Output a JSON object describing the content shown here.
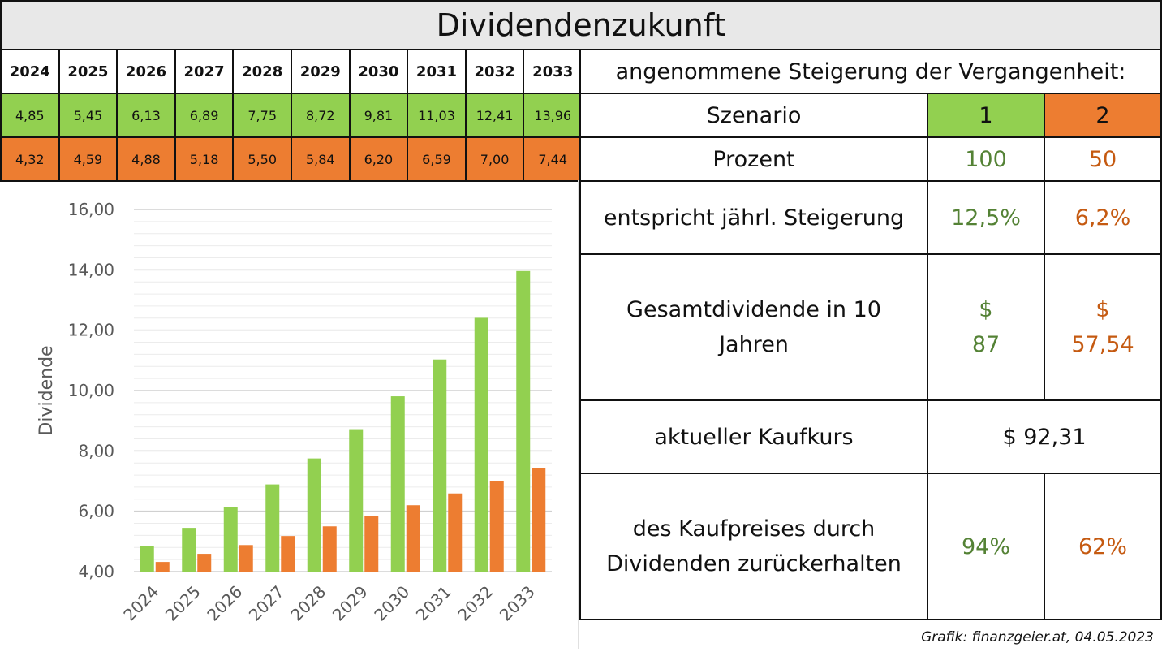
{
  "title": "Dividendenzukunft",
  "years": [
    "2024",
    "2025",
    "2026",
    "2027",
    "2028",
    "2029",
    "2030",
    "2031",
    "2032",
    "2033"
  ],
  "table_row1": [
    "4,85",
    "5,45",
    "6,13",
    "6,89",
    "7,75",
    "8,72",
    "9,81",
    "11,03",
    "12,41",
    "13,96"
  ],
  "table_row2": [
    "4,32",
    "4,59",
    "4,88",
    "5,18",
    "5,50",
    "5,84",
    "6,20",
    "6,59",
    "7,00",
    "7,44"
  ],
  "colors": {
    "scenario1": "#92d050",
    "scenario2": "#ed7d31",
    "text1": "#548235",
    "text2": "#c55a11"
  },
  "right": {
    "header": "angenommene Steigerung der Vergangenheit:",
    "szenario_label": "Szenario",
    "szenario_1": "1",
    "szenario_2": "2",
    "prozent_label": "Prozent",
    "prozent_1": "100",
    "prozent_2": "50",
    "steigerung_label": "entspricht jährl. Steigerung",
    "steigerung_1": "12,5%",
    "steigerung_2": "6,2%",
    "gesamt_label_1": "Gesamtdividende in 10",
    "gesamt_label_2": "Jahren",
    "gesamt_1_symbol": "$",
    "gesamt_1_value": "87",
    "gesamt_2_symbol": "$",
    "gesamt_2_value": "57,54",
    "kaufkurs_label": "aktueller Kaufkurs",
    "kaufkurs_value": "$ 92,31",
    "zurueck_label_1": "des Kaufpreises durch",
    "zurueck_label_2": "Dividenden zurückerhalten",
    "zurueck_1": "94%",
    "zurueck_2": "62%"
  },
  "credit": "Grafik: finanzgeier.at, 04.05.2023",
  "chart_data": {
    "type": "bar",
    "categories": [
      "2024",
      "2025",
      "2026",
      "2027",
      "2028",
      "2029",
      "2030",
      "2031",
      "2032",
      "2033"
    ],
    "series": [
      {
        "values": [
          4.85,
          5.45,
          6.13,
          6.89,
          7.75,
          8.72,
          9.81,
          11.03,
          12.41,
          13.96
        ],
        "color": "#92d050"
      },
      {
        "values": [
          4.32,
          4.59,
          4.88,
          5.18,
          5.5,
          5.84,
          6.2,
          6.59,
          7.0,
          7.44
        ],
        "color": "#ed7d31"
      }
    ],
    "ylabel": "Dividende",
    "ylim": [
      4,
      16
    ],
    "yticks": [
      "4,00",
      "6,00",
      "8,00",
      "10,00",
      "12,00",
      "14,00",
      "16,00"
    ],
    "grid": true
  }
}
